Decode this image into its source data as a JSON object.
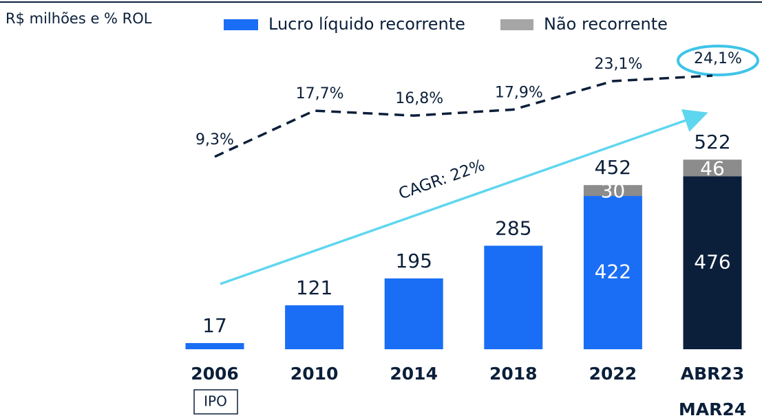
{
  "chart_data": {
    "type": "bar",
    "subtitle": "R$ milhões e % ROL",
    "categories": [
      "2006",
      "2010",
      "2014",
      "2018",
      "2022",
      [
        "ABR23",
        "MAR24"
      ]
    ],
    "series": [
      {
        "name": "Lucro líquido recorrente",
        "color": "#1a6ef5",
        "colors": [
          "#1a6ef5",
          "#1a6ef5",
          "#1a6ef5",
          "#1a6ef5",
          "#1a6ef5",
          "#0b1f3a"
        ],
        "values": [
          17,
          121,
          195,
          285,
          422,
          476
        ]
      },
      {
        "name": "Não recorrente",
        "color": "#8c8c8c",
        "values": [
          null,
          null,
          null,
          null,
          30,
          46
        ]
      },
      {
        "type": "line",
        "axis": "y2",
        "color": "#0b1f3a",
        "dashed": true,
        "values": [
          9.3,
          17.7,
          16.8,
          17.9,
          23.1,
          24.1
        ],
        "value_labels": [
          "9,3%",
          "17,7%",
          "16,8%",
          "17,9%",
          "23,1%",
          "24,1%"
        ]
      }
    ],
    "totals": [
      17,
      121,
      195,
      285,
      452,
      522
    ],
    "ylim": [
      0,
      600
    ],
    "y2lim": [
      0,
      30
    ],
    "annotations": [
      "CAGR: 22%",
      "IPO"
    ]
  }
}
